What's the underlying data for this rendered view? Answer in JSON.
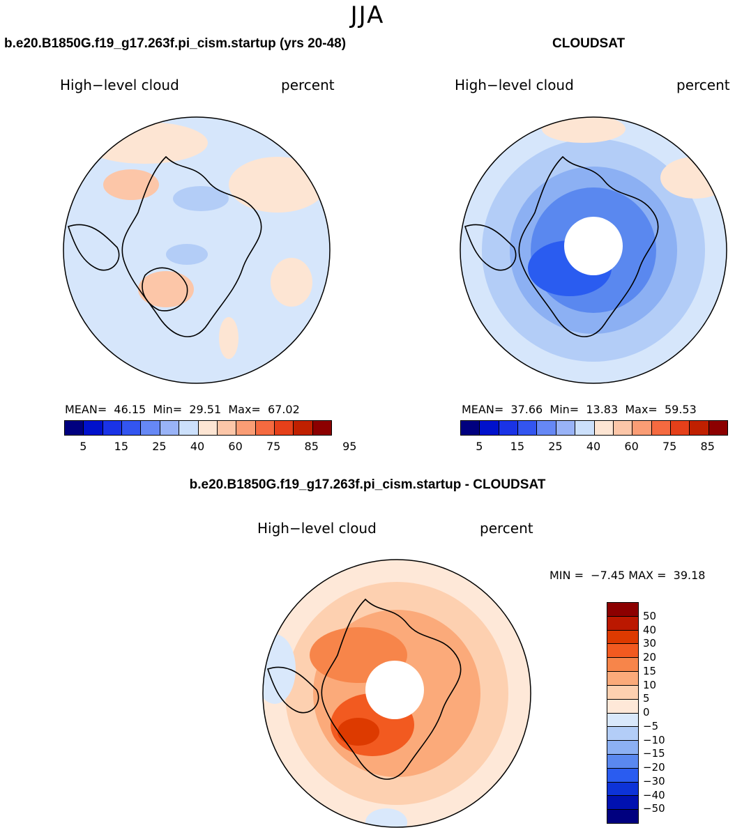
{
  "season": "JJA",
  "panels": [
    {
      "title": "b.e20.B1850G.f19_g17.263f.pi_cism.startup (yrs 20-48)",
      "left_label": "High−level cloud",
      "right_label": "percent",
      "stats": "MEAN=  46.15  Min=  29.51  Max=  67.02"
    },
    {
      "title": "CLOUDSAT",
      "left_label": "High−level cloud",
      "right_label": "percent",
      "stats": "MEAN=  37.66  Min=  13.83  Max=  59.53"
    }
  ],
  "diff_panel": {
    "title": "b.e20.B1850G.f19_g17.263f.pi_cism.startup - CLOUDSAT",
    "left_label": "High−level cloud",
    "right_label": "percent",
    "stats": "MIN =  −7.45 MAX =  39.18"
  },
  "colorbar_abs": {
    "colors": [
      "#00007f",
      "#0011cc",
      "#1a33e6",
      "#3355f0",
      "#6688f5",
      "#99b3f7",
      "#cce0fb",
      "#fde5d3",
      "#fcc6a8",
      "#fa9d75",
      "#f56a40",
      "#e5401a",
      "#c02000",
      "#8c0000"
    ],
    "tick_labels": [
      "5",
      "15",
      "25",
      "40",
      "60",
      "75",
      "85",
      "95"
    ]
  },
  "colorbar_diff": {
    "colors": [
      "#8c0000",
      "#bb1800",
      "#dd3a00",
      "#f25a20",
      "#f7854a",
      "#fbaa7a",
      "#fdd0b0",
      "#fee8d8",
      "#d9e8fb",
      "#b3cdf7",
      "#8cb0f3",
      "#5a88ef",
      "#2a5cf0",
      "#0d33d8",
      "#0011b0",
      "#00007f"
    ],
    "labels": [
      "50",
      "40",
      "30",
      "20",
      "15",
      "10",
      "5",
      "0",
      "−5",
      "−10",
      "−15",
      "−20",
      "−30",
      "−40",
      "−50"
    ]
  },
  "chart_data": [
    {
      "type": "heatmap",
      "title": "b.e20.B1850G.f19_g17.263f.pi_cism.startup (yrs 20-48)",
      "variable": "High−level cloud",
      "units": "percent",
      "mean": 46.15,
      "min": 29.51,
      "max": 67.02,
      "contour_levels": [
        5,
        10,
        15,
        20,
        25,
        30,
        40,
        50,
        60,
        70,
        75,
        80,
        85,
        90,
        95
      ]
    },
    {
      "type": "heatmap",
      "title": "CLOUDSAT",
      "variable": "High−level cloud",
      "units": "percent",
      "mean": 37.66,
      "min": 13.83,
      "max": 59.53,
      "contour_levels": [
        5,
        10,
        15,
        20,
        25,
        30,
        40,
        50,
        60,
        70,
        75,
        80,
        85,
        90,
        95
      ]
    },
    {
      "type": "heatmap",
      "title": "b.e20.B1850G.f19_g17.263f.pi_cism.startup - CLOUDSAT",
      "variable": "High−level cloud",
      "units": "percent",
      "min": -7.45,
      "max": 39.18,
      "contour_levels": [
        -50,
        -40,
        -30,
        -20,
        -15,
        -10,
        -5,
        0,
        5,
        10,
        15,
        20,
        30,
        40,
        50
      ]
    }
  ]
}
